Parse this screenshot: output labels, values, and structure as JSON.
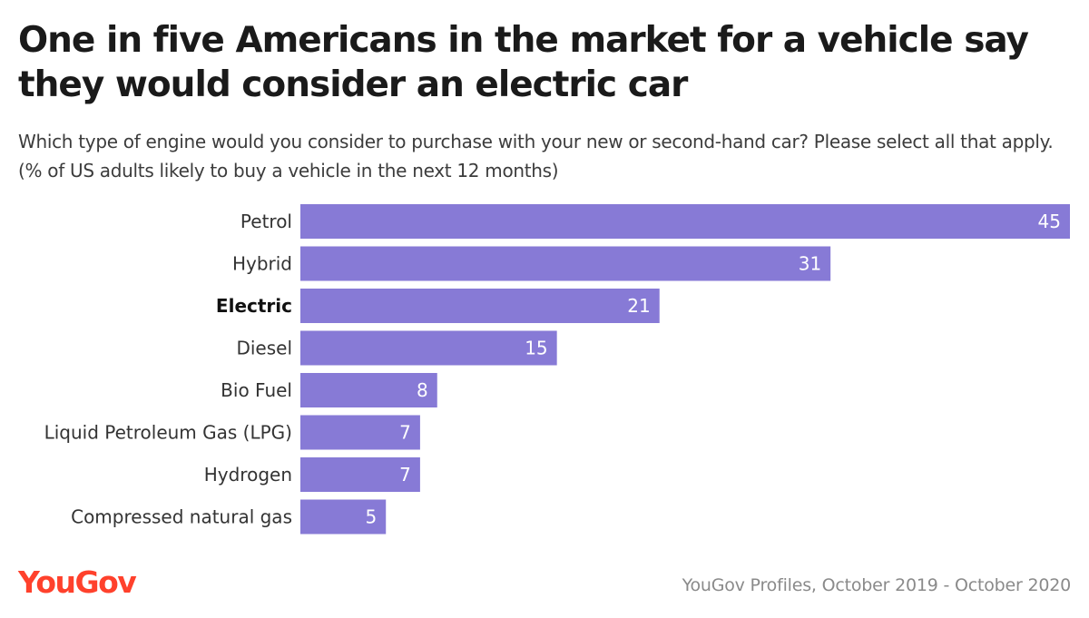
{
  "title": "One in five Americans in the market for a vehicle say they would consider an electric car",
  "subtitle": "Which type of engine would you consider to purchase with your new or second-hand car? Please select all that apply. (% of US adults likely to buy a vehicle in the next 12 months)",
  "colors": {
    "bar": "#877ad6",
    "brand": "#ff412c",
    "value_label": "#ffffff"
  },
  "footer": {
    "logo": "YouGov",
    "source": "YouGov Profiles, October 2019 - October 2020"
  },
  "chart_data": {
    "type": "bar",
    "orientation": "horizontal",
    "categories": [
      "Petrol",
      "Hybrid",
      "Electric",
      "Diesel",
      "Bio Fuel",
      "Liquid Petroleum Gas (LPG)",
      "Hydrogen",
      "Compressed natural gas"
    ],
    "values": [
      45,
      31,
      21,
      15,
      8,
      7,
      7,
      5
    ],
    "highlighted_category": "Electric",
    "xlim": [
      0,
      45
    ],
    "grid": false,
    "legend": "none"
  }
}
